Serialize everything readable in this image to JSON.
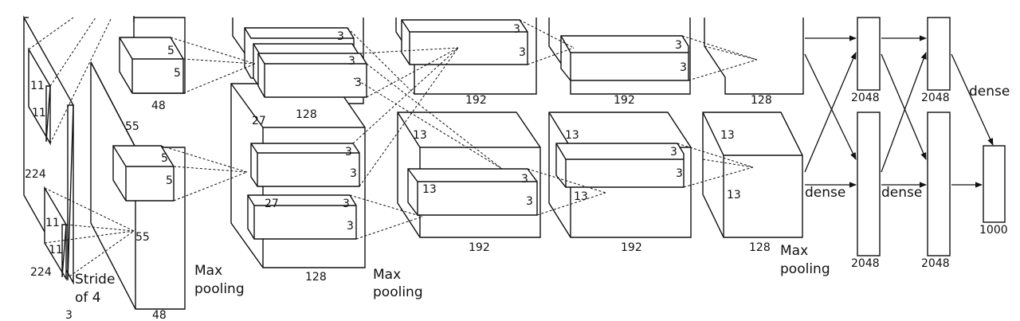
{
  "input": {
    "size": "224",
    "size_bottom": "224",
    "depth": "3",
    "kernel": "11",
    "stride_line1": "Stride",
    "stride_line2": "of 4"
  },
  "conv1": {
    "size": "55",
    "depth": "48",
    "kernel": "5"
  },
  "conv2": {
    "size": "27",
    "depth": "128",
    "kernel": "3"
  },
  "conv3": {
    "size": "13",
    "depth": "192",
    "kernel": "3"
  },
  "conv4": {
    "size": "13",
    "depth": "192",
    "kernel": "3"
  },
  "conv5": {
    "size": "13",
    "depth": "128"
  },
  "fc": {
    "width": "2048",
    "output": "1000"
  },
  "labels": {
    "max_pooling_line1": "Max",
    "max_pooling_line2": "pooling",
    "dense": "dense"
  }
}
